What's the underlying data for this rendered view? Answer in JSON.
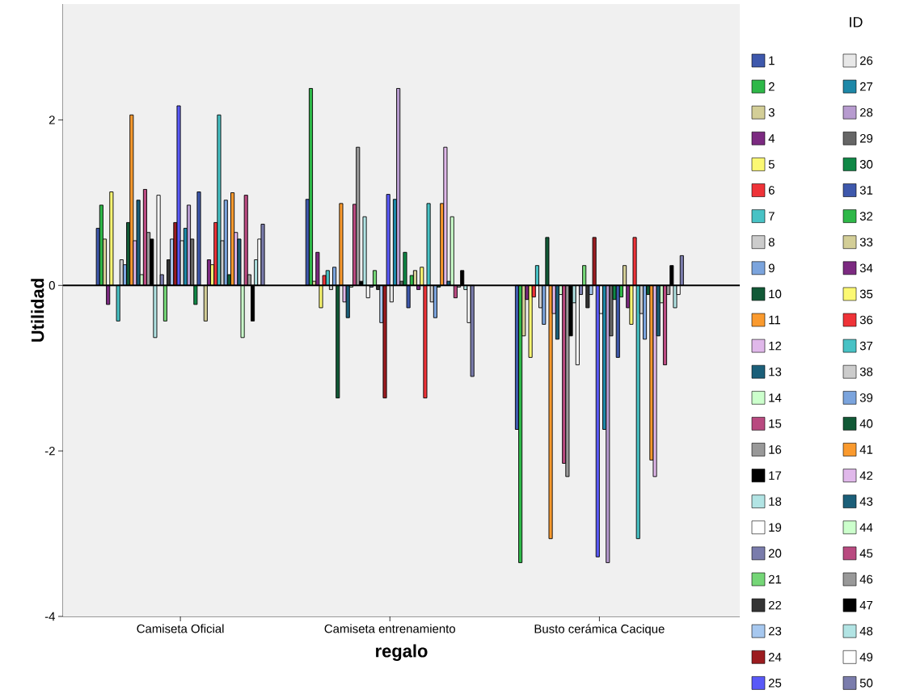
{
  "chart_data": {
    "type": "bar",
    "xlabel": "regalo",
    "ylabel": "Utilidad",
    "legend_title": "ID",
    "legend": "right",
    "categories": [
      "Camiseta Oficial",
      "Camiseta entrenamiento",
      "Busto cerámica Cacique"
    ],
    "ylim": [
      -4,
      3.4
    ],
    "yticks": [
      -4,
      -2,
      0,
      2
    ],
    "ref_lines": [
      {
        "axis": "y",
        "value": 0,
        "color": "#000000"
      }
    ],
    "series": [
      {
        "name": "1",
        "color": "#3e58ac",
        "values": [
          0.69,
          1.04,
          -1.74
        ]
      },
      {
        "name": "2",
        "color": "#2eb848",
        "values": [
          0.97,
          2.38,
          -3.35
        ]
      },
      {
        "name": "3",
        "color": "#d3ce97",
        "values": [
          0.56,
          0.05,
          -0.61
        ]
      },
      {
        "name": "4",
        "color": "#7c2a81",
        "values": [
          -0.23,
          0.4,
          -0.17
        ]
      },
      {
        "name": "5",
        "color": "#fbf873",
        "values": [
          1.13,
          -0.27,
          -0.87
        ]
      },
      {
        "name": "6",
        "color": "#ef3338",
        "values": [
          null,
          0.12,
          -0.14
        ]
      },
      {
        "name": "7",
        "color": "#48c2c5",
        "values": [
          -0.43,
          0.18,
          0.24
        ]
      },
      {
        "name": "8",
        "color": "#cccccc",
        "values": [
          0.31,
          -0.05,
          -0.27
        ]
      },
      {
        "name": "9",
        "color": "#7ba4dd",
        "values": [
          0.25,
          0.22,
          -0.47
        ]
      },
      {
        "name": "10",
        "color": "#115936",
        "values": [
          0.76,
          -1.36,
          0.58
        ]
      },
      {
        "name": "11",
        "color": "#fa9a2e",
        "values": [
          2.06,
          0.99,
          -3.06
        ]
      },
      {
        "name": "12",
        "color": "#e0b8ea",
        "values": [
          0.54,
          -0.2,
          -0.34
        ]
      },
      {
        "name": "13",
        "color": "#1b5f79",
        "values": [
          1.03,
          -0.39,
          -0.65
        ]
      },
      {
        "name": "14",
        "color": "#ccffcc",
        "values": [
          0.13,
          -0.02,
          -0.11
        ]
      },
      {
        "name": "15",
        "color": "#b94a80",
        "values": [
          1.16,
          0.98,
          -2.15
        ]
      },
      {
        "name": "16",
        "color": "#999999",
        "values": [
          0.64,
          1.67,
          -2.31
        ]
      },
      {
        "name": "17",
        "color": "#000000",
        "values": [
          0.56,
          0.05,
          -0.61
        ]
      },
      {
        "name": "18",
        "color": "#b2e4e4",
        "values": [
          -0.63,
          0.83,
          -0.21
        ]
      },
      {
        "name": "19",
        "color": "#ffffff",
        "values": [
          1.09,
          -0.15,
          -0.96
        ]
      },
      {
        "name": "20",
        "color": "#7a7cac",
        "values": [
          0.13,
          -0.02,
          -0.11
        ]
      },
      {
        "name": "21",
        "color": "#75d677",
        "values": [
          -0.43,
          0.18,
          0.24
        ]
      },
      {
        "name": "22",
        "color": "#333333",
        "values": [
          0.31,
          -0.05,
          -0.27
        ]
      },
      {
        "name": "23",
        "color": "#a7c8ef",
        "values": [
          0.56,
          -0.45,
          -0.11
        ]
      },
      {
        "name": "24",
        "color": "#9c1c20",
        "values": [
          0.76,
          -1.36,
          0.58
        ]
      },
      {
        "name": "25",
        "color": "#5959f8",
        "values": [
          2.17,
          1.1,
          -3.28
        ]
      },
      {
        "name": "26",
        "color": "#e8e8e8",
        "values": [
          0.54,
          -0.2,
          -0.34
        ]
      },
      {
        "name": "27",
        "color": "#1d88a8",
        "values": [
          0.69,
          1.04,
          -1.74
        ]
      },
      {
        "name": "28",
        "color": "#b79bcf",
        "values": [
          0.97,
          2.38,
          -3.35
        ]
      },
      {
        "name": "29",
        "color": "#666666",
        "values": [
          0.56,
          0.05,
          -0.61
        ]
      },
      {
        "name": "30",
        "color": "#0f8846",
        "values": [
          -0.23,
          0.4,
          -0.17
        ]
      },
      {
        "name": "31",
        "color": "#3e58ac",
        "values": [
          1.13,
          -0.27,
          -0.87
        ]
      },
      {
        "name": "32",
        "color": "#2eb848",
        "values": [
          null,
          0.12,
          -0.14
        ]
      },
      {
        "name": "33",
        "color": "#d3ce97",
        "values": [
          -0.43,
          0.18,
          0.24
        ]
      },
      {
        "name": "34",
        "color": "#7c2a81",
        "values": [
          0.31,
          -0.05,
          -0.27
        ]
      },
      {
        "name": "35",
        "color": "#fbf873",
        "values": [
          0.25,
          0.22,
          -0.47
        ]
      },
      {
        "name": "36",
        "color": "#ef3338",
        "values": [
          0.76,
          -1.36,
          0.58
        ]
      },
      {
        "name": "37",
        "color": "#48c2c5",
        "values": [
          2.06,
          0.99,
          -3.06
        ]
      },
      {
        "name": "38",
        "color": "#cccccc",
        "values": [
          0.54,
          -0.2,
          -0.34
        ]
      },
      {
        "name": "39",
        "color": "#7ba4dd",
        "values": [
          1.03,
          -0.39,
          -0.65
        ]
      },
      {
        "name": "40",
        "color": "#115936",
        "values": [
          0.13,
          -0.02,
          -0.11
        ]
      },
      {
        "name": "41",
        "color": "#fa9a2e",
        "values": [
          1.12,
          0.99,
          -2.11
        ]
      },
      {
        "name": "42",
        "color": "#e0b8ea",
        "values": [
          0.64,
          1.67,
          -2.31
        ]
      },
      {
        "name": "43",
        "color": "#1b5f79",
        "values": [
          0.56,
          0.05,
          -0.61
        ]
      },
      {
        "name": "44",
        "color": "#ccffcc",
        "values": [
          -0.63,
          0.83,
          -0.21
        ]
      },
      {
        "name": "45",
        "color": "#b94a80",
        "values": [
          1.09,
          -0.15,
          -0.96
        ]
      },
      {
        "name": "46",
        "color": "#999999",
        "values": [
          0.13,
          -0.02,
          -0.11
        ]
      },
      {
        "name": "47",
        "color": "#000000",
        "values": [
          -0.43,
          0.18,
          0.24
        ]
      },
      {
        "name": "48",
        "color": "#b2e4e4",
        "values": [
          0.31,
          -0.05,
          -0.27
        ]
      },
      {
        "name": "49",
        "color": "#ffffff",
        "values": [
          0.56,
          -0.45,
          -0.11
        ]
      },
      {
        "name": "50",
        "color": "#7a7cac",
        "values": [
          0.74,
          -1.1,
          0.36
        ]
      }
    ]
  }
}
